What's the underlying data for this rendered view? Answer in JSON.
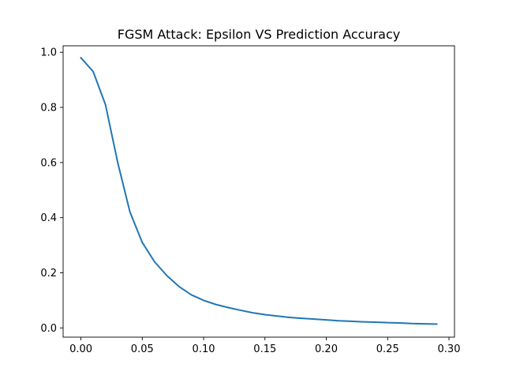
{
  "chart_data": {
    "type": "line",
    "title": "FGSM Attack: Epsilon VS Prediction Accuracy",
    "xlabel": "",
    "ylabel": "",
    "xlim": [
      -0.0145,
      0.3045
    ],
    "ylim": [
      -0.0335,
      1.0235
    ],
    "xticks": [
      0.0,
      0.05,
      0.1,
      0.15,
      0.2,
      0.25,
      0.3
    ],
    "xtick_labels": [
      "0.00",
      "0.05",
      "0.10",
      "0.15",
      "0.20",
      "0.25",
      "0.30"
    ],
    "yticks": [
      0.0,
      0.2,
      0.4,
      0.6,
      0.8,
      1.0
    ],
    "ytick_labels": [
      "0.0",
      "0.2",
      "0.4",
      "0.6",
      "0.8",
      "1.0"
    ],
    "grid": false,
    "series": [
      {
        "color": "#1f77b4",
        "x": [
          0.0,
          0.01,
          0.02,
          0.03,
          0.04,
          0.05,
          0.06,
          0.07,
          0.08,
          0.09,
          0.1,
          0.11,
          0.12,
          0.13,
          0.14,
          0.15,
          0.16,
          0.17,
          0.18,
          0.19,
          0.2,
          0.21,
          0.22,
          0.23,
          0.24,
          0.25,
          0.26,
          0.27,
          0.28,
          0.29
        ],
        "y": [
          0.98,
          0.93,
          0.81,
          0.6,
          0.42,
          0.31,
          0.24,
          0.19,
          0.15,
          0.12,
          0.1,
          0.085,
          0.074,
          0.064,
          0.055,
          0.048,
          0.043,
          0.038,
          0.035,
          0.032,
          0.029,
          0.026,
          0.024,
          0.022,
          0.021,
          0.019,
          0.018,
          0.016,
          0.015,
          0.014
        ]
      }
    ]
  }
}
